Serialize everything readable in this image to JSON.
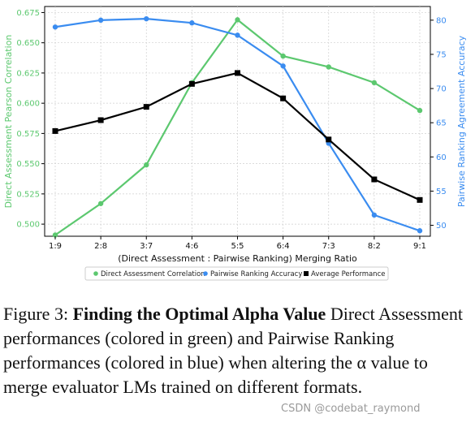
{
  "chart_data": {
    "type": "line",
    "categories": [
      "1:9",
      "2:8",
      "3:7",
      "4:6",
      "5:5",
      "6:4",
      "7:3",
      "8:2",
      "9:1"
    ],
    "xlabel": "(Direct Assessment : Pairwise Ranking) Merging Ratio",
    "ylabel_left": "Direct Assessment Pearson Correlation",
    "ylabel_right": "Pairwise Ranking Agreement Accuracy",
    "ylim_left": [
      0.49,
      0.68
    ],
    "ylim_right": [
      48.4,
      82
    ],
    "yticks_left": [
      "0.500",
      "0.525",
      "0.550",
      "0.575",
      "0.600",
      "0.625",
      "0.650",
      "0.675"
    ],
    "yticks_right": [
      "50",
      "55",
      "60",
      "65",
      "70",
      "75",
      "80"
    ],
    "grid": true,
    "legend_position": "bottom",
    "series": [
      {
        "name": "Direct Assessment Correlation",
        "axis": "left",
        "color": "#5cc86f",
        "marker": "circle",
        "values": [
          0.491,
          0.517,
          0.549,
          0.617,
          0.669,
          0.639,
          0.63,
          0.617,
          0.594
        ]
      },
      {
        "name": "Pairwise Ranking Accuracy",
        "axis": "right",
        "color": "#3a8cf0",
        "marker": "circle",
        "values": [
          79.0,
          80.0,
          80.2,
          79.6,
          77.8,
          73.3,
          62.0,
          51.5,
          49.2
        ]
      },
      {
        "name": "Average Performance",
        "axis": "left",
        "color": "#000000",
        "marker": "square",
        "values": [
          0.577,
          0.586,
          0.597,
          0.616,
          0.625,
          0.604,
          0.57,
          0.537,
          0.52
        ]
      }
    ]
  },
  "caption": {
    "prefix": "Figure 3: ",
    "bold_title": "Finding the Optimal Alpha Value",
    "body": " Direct Assessment performances (colored in green) and Pairwise Ranking performances (colored in blue) when altering the α value to merge evaluator LMs trained on different formats."
  },
  "watermark": "CSDN @codebat_raymond"
}
